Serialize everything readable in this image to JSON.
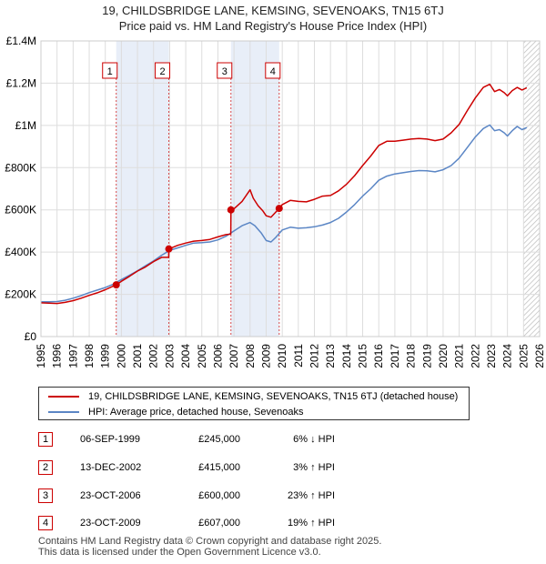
{
  "title_lines": [
    "19, CHILDSBRIDGE LANE, KEMSING, SEVENOAKS, TN15 6TJ",
    "Price paid vs. HM Land Registry's House Price Index (HPI)"
  ],
  "colors": {
    "property": "#cc0000",
    "hpi": "#5b86c5",
    "shade": "#e8eef8",
    "grid": "#dddddd",
    "marker_border": "#cc0000"
  },
  "chart_data": {
    "type": "line",
    "title": "Price paid vs. HM Land Registry's House Price Index (HPI)",
    "xlabel": "",
    "ylabel": "",
    "xlim": [
      1995,
      2026
    ],
    "ylim": [
      0,
      1400000
    ],
    "x_ticks": [
      "1995",
      "1996",
      "1997",
      "1998",
      "1999",
      "2000",
      "2001",
      "2002",
      "2003",
      "2004",
      "2005",
      "2006",
      "2007",
      "2008",
      "2009",
      "2010",
      "2011",
      "2012",
      "2013",
      "2014",
      "2015",
      "2016",
      "2017",
      "2018",
      "2019",
      "2020",
      "2021",
      "2022",
      "2023",
      "2024",
      "2025",
      "2026"
    ],
    "y_ticks": [
      {
        "value": 0,
        "label": "£0"
      },
      {
        "value": 200000,
        "label": "£200K"
      },
      {
        "value": 400000,
        "label": "£400K"
      },
      {
        "value": 600000,
        "label": "£600K"
      },
      {
        "value": 800000,
        "label": "£800K"
      },
      {
        "value": 1000000,
        "label": "£1M"
      },
      {
        "value": 1200000,
        "label": "£1.2M"
      },
      {
        "value": 1400000,
        "label": "£1.4M"
      }
    ],
    "grid": true,
    "shaded_ranges": [
      [
        1999.68,
        2002.95
      ],
      [
        2006.81,
        2009.81
      ]
    ],
    "hatched_from": 2025.0,
    "series": [
      {
        "name": "19, CHILDSBRIDGE LANE, KEMSING, SEVENOAKS, TN15 6TJ (detached house)",
        "color": "#cc0000",
        "points": [
          [
            1995.0,
            160000
          ],
          [
            1995.5,
            158000
          ],
          [
            1996.0,
            157000
          ],
          [
            1996.5,
            162000
          ],
          [
            1997.0,
            170000
          ],
          [
            1997.5,
            182000
          ],
          [
            1998.0,
            195000
          ],
          [
            1998.5,
            207000
          ],
          [
            1999.0,
            222000
          ],
          [
            1999.68,
            245000
          ],
          [
            2000.0,
            262000
          ],
          [
            2000.5,
            285000
          ],
          [
            2001.0,
            310000
          ],
          [
            2001.5,
            330000
          ],
          [
            2002.0,
            355000
          ],
          [
            2002.5,
            375000
          ],
          [
            2002.94,
            375000
          ],
          [
            2002.95,
            415000
          ],
          [
            2003.5,
            432000
          ],
          [
            2004.0,
            443000
          ],
          [
            2004.5,
            452000
          ],
          [
            2005.0,
            455000
          ],
          [
            2005.5,
            460000
          ],
          [
            2006.0,
            472000
          ],
          [
            2006.5,
            483000
          ],
          [
            2006.8,
            485000
          ],
          [
            2006.81,
            600000
          ],
          [
            2007.0,
            605000
          ],
          [
            2007.5,
            640000
          ],
          [
            2008.0,
            695000
          ],
          [
            2008.2,
            655000
          ],
          [
            2008.5,
            620000
          ],
          [
            2008.8,
            595000
          ],
          [
            2009.0,
            572000
          ],
          [
            2009.3,
            565000
          ],
          [
            2009.81,
            607000
          ],
          [
            2010.0,
            625000
          ],
          [
            2010.5,
            645000
          ],
          [
            2011.0,
            640000
          ],
          [
            2011.5,
            638000
          ],
          [
            2012.0,
            650000
          ],
          [
            2012.5,
            665000
          ],
          [
            2013.0,
            668000
          ],
          [
            2013.5,
            690000
          ],
          [
            2014.0,
            722000
          ],
          [
            2014.5,
            762000
          ],
          [
            2015.0,
            810000
          ],
          [
            2015.5,
            855000
          ],
          [
            2016.0,
            905000
          ],
          [
            2016.5,
            925000
          ],
          [
            2017.0,
            925000
          ],
          [
            2017.5,
            930000
          ],
          [
            2018.0,
            935000
          ],
          [
            2018.5,
            938000
          ],
          [
            2019.0,
            935000
          ],
          [
            2019.5,
            928000
          ],
          [
            2020.0,
            935000
          ],
          [
            2020.5,
            965000
          ],
          [
            2021.0,
            1005000
          ],
          [
            2021.5,
            1070000
          ],
          [
            2022.0,
            1130000
          ],
          [
            2022.5,
            1180000
          ],
          [
            2022.9,
            1195000
          ],
          [
            2023.2,
            1160000
          ],
          [
            2023.5,
            1170000
          ],
          [
            2023.8,
            1155000
          ],
          [
            2024.0,
            1140000
          ],
          [
            2024.3,
            1165000
          ],
          [
            2024.6,
            1180000
          ],
          [
            2024.9,
            1168000
          ],
          [
            2025.2,
            1178000
          ]
        ]
      },
      {
        "name": "HPI: Average price, detached house, Sevenoaks",
        "color": "#5b86c5",
        "points": [
          [
            1995.0,
            165000
          ],
          [
            1995.5,
            165000
          ],
          [
            1996.0,
            166000
          ],
          [
            1996.5,
            172000
          ],
          [
            1997.0,
            182000
          ],
          [
            1997.5,
            194000
          ],
          [
            1998.0,
            208000
          ],
          [
            1998.5,
            220000
          ],
          [
            1999.0,
            232000
          ],
          [
            1999.5,
            248000
          ],
          [
            2000.0,
            270000
          ],
          [
            2000.5,
            290000
          ],
          [
            2001.0,
            312000
          ],
          [
            2001.5,
            335000
          ],
          [
            2002.0,
            358000
          ],
          [
            2002.5,
            385000
          ],
          [
            2003.0,
            408000
          ],
          [
            2003.5,
            420000
          ],
          [
            2004.0,
            432000
          ],
          [
            2004.5,
            443000
          ],
          [
            2005.0,
            445000
          ],
          [
            2005.5,
            448000
          ],
          [
            2006.0,
            458000
          ],
          [
            2006.5,
            475000
          ],
          [
            2007.0,
            500000
          ],
          [
            2007.5,
            525000
          ],
          [
            2008.0,
            540000
          ],
          [
            2008.3,
            525000
          ],
          [
            2008.7,
            490000
          ],
          [
            2009.0,
            455000
          ],
          [
            2009.3,
            448000
          ],
          [
            2009.6,
            470000
          ],
          [
            2010.0,
            505000
          ],
          [
            2010.5,
            518000
          ],
          [
            2011.0,
            513000
          ],
          [
            2011.5,
            515000
          ],
          [
            2012.0,
            520000
          ],
          [
            2012.5,
            528000
          ],
          [
            2013.0,
            540000
          ],
          [
            2013.5,
            560000
          ],
          [
            2014.0,
            590000
          ],
          [
            2014.5,
            625000
          ],
          [
            2015.0,
            665000
          ],
          [
            2015.5,
            700000
          ],
          [
            2016.0,
            740000
          ],
          [
            2016.5,
            760000
          ],
          [
            2017.0,
            770000
          ],
          [
            2017.5,
            776000
          ],
          [
            2018.0,
            782000
          ],
          [
            2018.5,
            786000
          ],
          [
            2019.0,
            785000
          ],
          [
            2019.5,
            780000
          ],
          [
            2020.0,
            790000
          ],
          [
            2020.5,
            810000
          ],
          [
            2021.0,
            845000
          ],
          [
            2021.5,
            895000
          ],
          [
            2022.0,
            945000
          ],
          [
            2022.5,
            985000
          ],
          [
            2022.9,
            1002000
          ],
          [
            2023.2,
            975000
          ],
          [
            2023.5,
            980000
          ],
          [
            2023.8,
            965000
          ],
          [
            2024.0,
            950000
          ],
          [
            2024.3,
            975000
          ],
          [
            2024.6,
            995000
          ],
          [
            2024.9,
            980000
          ],
          [
            2025.2,
            990000
          ]
        ]
      }
    ],
    "sales": [
      {
        "label": "1",
        "x": 1999.68,
        "price": 245000
      },
      {
        "label": "2",
        "x": 2002.95,
        "price": 415000
      },
      {
        "label": "3",
        "x": 2006.81,
        "price": 600000
      },
      {
        "label": "4",
        "x": 2009.81,
        "price": 607000
      }
    ]
  },
  "legend": [
    {
      "label": "19, CHILDSBRIDGE LANE, KEMSING, SEVENOAKS, TN15 6TJ (detached house)",
      "color": "#cc0000"
    },
    {
      "label": "HPI: Average price, detached house, Sevenoaks",
      "color": "#5b86c5"
    }
  ],
  "transactions": [
    {
      "num": "1",
      "date": "06-SEP-1999",
      "price": "£245,000",
      "hpi": "6% ↓ HPI"
    },
    {
      "num": "2",
      "date": "13-DEC-2002",
      "price": "£415,000",
      "hpi": "3% ↑ HPI"
    },
    {
      "num": "3",
      "date": "23-OCT-2006",
      "price": "£600,000",
      "hpi": "23% ↑ HPI"
    },
    {
      "num": "4",
      "date": "23-OCT-2009",
      "price": "£607,000",
      "hpi": "19% ↑ HPI"
    }
  ],
  "footer": [
    "Contains HM Land Registry data © Crown copyright and database right 2025.",
    "This data is licensed under the Open Government Licence v3.0."
  ]
}
